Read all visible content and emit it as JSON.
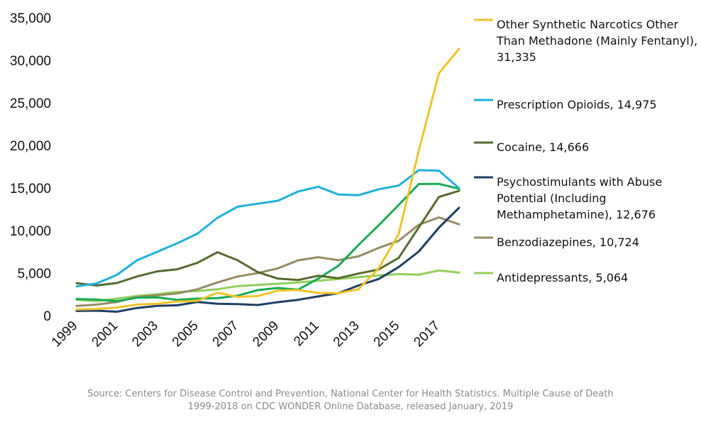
{
  "chart_data": {
    "type": "line",
    "x": [
      1999,
      2000,
      2001,
      2002,
      2003,
      2004,
      2005,
      2006,
      2007,
      2008,
      2009,
      2010,
      2011,
      2012,
      2013,
      2014,
      2015,
      2016,
      2017,
      2018
    ],
    "x_tick_labels": [
      "1999",
      "2001",
      "2003",
      "2005",
      "2007",
      "2009",
      "2011",
      "2013",
      "2015",
      "2017"
    ],
    "y_tick_labels": [
      "35,000",
      "30,000",
      "25,000",
      "20,000",
      "15,000",
      "10,000",
      "5,000",
      "0"
    ],
    "ylim": [
      0,
      35000
    ],
    "grid": false,
    "legend_position": "right",
    "series": [
      {
        "name": "Other Synthetic Narcotics Other Than Methadone (Mainly Fentanyl), 31,335",
        "legend_lines": [
          "Other Synthetic Narcotics Other",
          "Than Methadone (Mainly Fentanyl),",
          "31,335"
        ],
        "color": "#f2c229",
        "values": [
          730,
          780,
          960,
          1300,
          1400,
          1660,
          1740,
          2700,
          2210,
          2300,
          2950,
          3010,
          2670,
          2630,
          3100,
          5540,
          9580,
          19410,
          28470,
          31335
        ]
      },
      {
        "name": "Prescription Opioids, 14,975",
        "legend_lines": [
          "Prescription Opioids, 14,975"
        ],
        "color": "#1fb0dc",
        "values": [
          3440,
          3790,
          4780,
          6500,
          7500,
          8500,
          9630,
          11500,
          12800,
          13150,
          13500,
          14580,
          15140,
          14240,
          14150,
          14840,
          15280,
          17090,
          17030,
          14975
        ]
      },
      {
        "name": "Cocaine, 14,666",
        "legend_lines": [
          "Cocaine, 14,666"
        ],
        "color": "#556b2f",
        "values": [
          3820,
          3540,
          3830,
          4600,
          5200,
          5450,
          6200,
          7450,
          6510,
          5110,
          4350,
          4180,
          4680,
          4400,
          4940,
          5420,
          6780,
          10380,
          13940,
          14666
        ]
      },
      {
        "name": "Psychostimulants with Abuse Potential (Including Methamphetamine), 12,676",
        "legend_lines": [
          "Psychostimulants with Abuse",
          "Potential (Including",
          "Methamphetamine), 12,676"
        ],
        "color": "#1f3f63",
        "values": [
          550,
          580,
          460,
          900,
          1150,
          1220,
          1600,
          1400,
          1350,
          1250,
          1580,
          1860,
          2260,
          2630,
          3540,
          4300,
          5700,
          7540,
          10330,
          12676
        ]
      },
      {
        "name": "Benzodiazepines, 10,724",
        "legend_lines": [
          "Benzodiazepines, 10,724"
        ],
        "color": "#958c62",
        "values": [
          1140,
          1300,
          1600,
          2200,
          2400,
          2600,
          3100,
          3900,
          4600,
          5000,
          5560,
          6500,
          6870,
          6520,
          6970,
          7950,
          8790,
          10680,
          11540,
          10724
        ]
      },
      {
        "name": "Antidepressants, 5,064",
        "legend_lines": [
          "Antidepressants, 5,064"
        ],
        "color": "#8fcf5a",
        "values": [
          1850,
          1700,
          2000,
          2320,
          2510,
          2790,
          2880,
          3100,
          3470,
          3600,
          3750,
          3890,
          4100,
          4300,
          4520,
          4720,
          4880,
          4820,
          5300,
          5064
        ]
      },
      {
        "name": "",
        "color": "#1aaa55",
        "values": [
          1960,
          1890,
          1700,
          2100,
          2150,
          1850,
          2000,
          2050,
          2350,
          3000,
          3250,
          3050,
          4350,
          5850,
          8300,
          10600,
          13000,
          15470,
          15480,
          14900
        ]
      }
    ]
  },
  "source": {
    "line1": "Source: Centers for Disease Control and Prevention, National Center for Health Statistics. Multiple Cause of Death",
    "line2": "1999-2018 on CDC WONDER Online Database, released January, 2019"
  }
}
